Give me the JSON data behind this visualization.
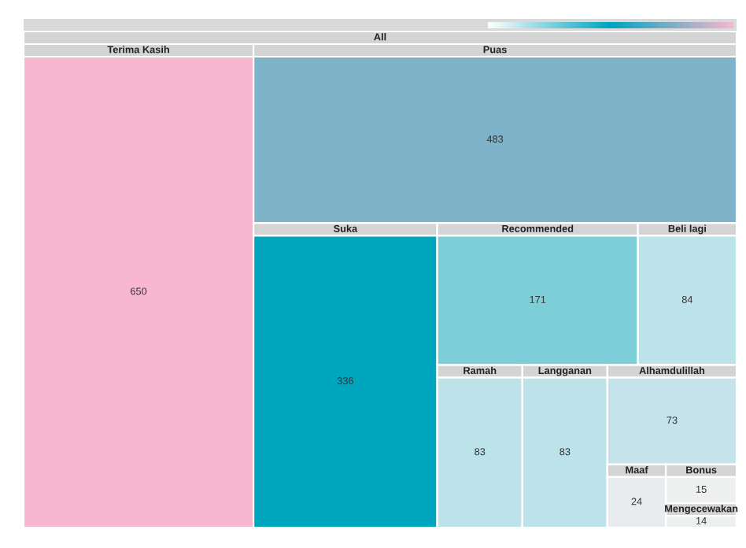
{
  "chart_data": {
    "type": "other",
    "title": "All",
    "categories": [
      "Terima Kasih",
      "Puas",
      "Suka",
      "Recommended",
      "Beli lagi",
      "Ramah",
      "Langganan",
      "Alhamdulillah",
      "Maaf",
      "Bonus",
      "Mengecewakan"
    ],
    "values": [
      650,
      483,
      336,
      171,
      84,
      83,
      83,
      73,
      24,
      15,
      14
    ],
    "colors": [
      "#f7b8cf",
      "#7fb3c9",
      "#00a5be",
      "#7ccfd8",
      "#bde3ea",
      "#bde3ea",
      "#bde3ea",
      "#c4e3ea",
      "#e8ecef",
      "#eef0f0",
      "#eef0f0"
    ],
    "data_labels": true
  }
}
